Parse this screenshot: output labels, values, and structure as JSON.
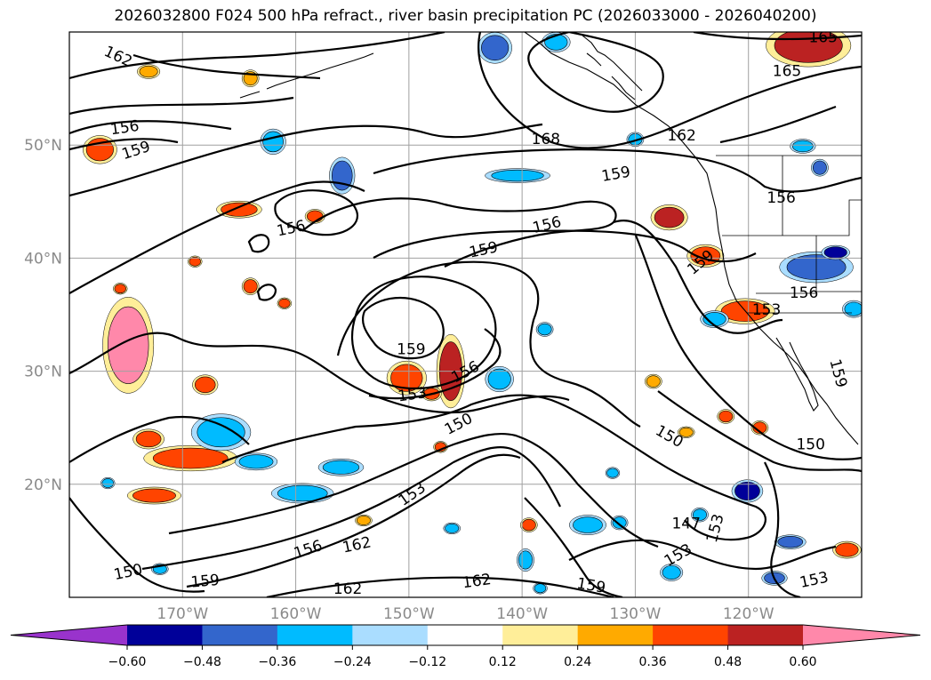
{
  "title": "2026032800 F024 500 hPa refract., river basin precipitation PC (2026033000 - 2026040200)",
  "chart_data": {
    "type": "map-contour-filled",
    "title": "2026032800 F024 500 hPa refract., river basin precipitation PC (2026033000 - 2026040200)",
    "extent": {
      "lon": [
        -180,
        -110
      ],
      "lat": [
        10,
        60
      ]
    },
    "lon_ticks": [
      {
        "value": -170,
        "label": "170°W"
      },
      {
        "value": -160,
        "label": "160°W"
      },
      {
        "value": -150,
        "label": "150°W"
      },
      {
        "value": -140,
        "label": "140°W"
      },
      {
        "value": -130,
        "label": "130°W"
      },
      {
        "value": -120,
        "label": "120°W"
      }
    ],
    "lat_ticks": [
      {
        "value": 20,
        "label": "20°N"
      },
      {
        "value": 30,
        "label": "30°N"
      },
      {
        "value": 40,
        "label": "40°N"
      },
      {
        "value": 50,
        "label": "50°N"
      }
    ],
    "contour_labels": [
      {
        "text": "162",
        "lon": -175.7,
        "lat": 57.8,
        "rot": 25
      },
      {
        "text": "156",
        "lon": -175.1,
        "lat": 51.5,
        "rot": -8
      },
      {
        "text": "159",
        "lon": -174.1,
        "lat": 49.5,
        "rot": -18
      },
      {
        "text": "168",
        "lon": -137.9,
        "lat": 50.5,
        "rot": 0
      },
      {
        "text": "162",
        "lon": -125.9,
        "lat": 50.8,
        "rot": 0
      },
      {
        "text": "165",
        "lon": -113.4,
        "lat": 59.5,
        "rot": 0
      },
      {
        "text": "165",
        "lon": -116.6,
        "lat": 56.5,
        "rot": 0
      },
      {
        "text": "159",
        "lon": -131.7,
        "lat": 47.4,
        "rot": -10
      },
      {
        "text": "156",
        "lon": -117.1,
        "lat": 45.3,
        "rot": 0
      },
      {
        "text": "156",
        "lon": -160.4,
        "lat": 42.6,
        "rot": -12
      },
      {
        "text": "156",
        "lon": -137.8,
        "lat": 42.9,
        "rot": -14
      },
      {
        "text": "159",
        "lon": -143.4,
        "lat": 40.7,
        "rot": -12
      },
      {
        "text": "159",
        "lon": -124.2,
        "lat": 39.6,
        "rot": -40
      },
      {
        "text": "156",
        "lon": -115.1,
        "lat": 36.9,
        "rot": 0
      },
      {
        "text": "153",
        "lon": -118.4,
        "lat": 35.4,
        "rot": 0
      },
      {
        "text": "159",
        "lon": -149.8,
        "lat": 31.9,
        "rot": 0
      },
      {
        "text": "156",
        "lon": -145.0,
        "lat": 29.9,
        "rot": -28
      },
      {
        "text": "159",
        "lon": -112.1,
        "lat": 29.8,
        "rot": 75
      },
      {
        "text": "153",
        "lon": -149.7,
        "lat": 27.9,
        "rot": -8
      },
      {
        "text": "150",
        "lon": -145.6,
        "lat": 25.3,
        "rot": -28
      },
      {
        "text": "150",
        "lon": -127.0,
        "lat": 24.2,
        "rot": 30
      },
      {
        "text": "150",
        "lon": -114.5,
        "lat": 23.5,
        "rot": 0
      },
      {
        "text": "153",
        "lon": -149.7,
        "lat": 19.1,
        "rot": -35
      },
      {
        "text": "147",
        "lon": -125.5,
        "lat": 16.5,
        "rot": 0
      },
      {
        "text": "153",
        "lon": -122.9,
        "lat": 16.1,
        "rot": -75
      },
      {
        "text": "156",
        "lon": -158.9,
        "lat": 14.2,
        "rot": -18
      },
      {
        "text": "162",
        "lon": -154.6,
        "lat": 14.6,
        "rot": -12
      },
      {
        "text": "153",
        "lon": -126.2,
        "lat": 13.7,
        "rot": -30
      },
      {
        "text": "150",
        "lon": -174.8,
        "lat": 12.2,
        "rot": -12
      },
      {
        "text": "159",
        "lon": -168.0,
        "lat": 11.4,
        "rot": -5
      },
      {
        "text": "162",
        "lon": -155.4,
        "lat": 10.7,
        "rot": 0
      },
      {
        "text": "162",
        "lon": -144.0,
        "lat": 11.4,
        "rot": -8
      },
      {
        "text": "159",
        "lon": -133.9,
        "lat": 11.0,
        "rot": 10
      },
      {
        "text": "153",
        "lon": -114.2,
        "lat": 11.5,
        "rot": -12
      }
    ],
    "colorbar": {
      "boundaries": [
        -0.72,
        -0.6,
        -0.48,
        -0.36,
        -0.24,
        -0.12,
        0.12,
        0.24,
        0.36,
        0.48,
        0.6,
        0.72
      ],
      "tick_labels": [
        "−0.60",
        "−0.48",
        "−0.36",
        "−0.24",
        "−0.12",
        "0.12",
        "0.24",
        "0.36",
        "0.48",
        "0.60"
      ],
      "colors": [
        "#9933cc",
        "#000099",
        "#3366cc",
        "#00bbff",
        "#aaddff",
        "#ffffff",
        "#ffee99",
        "#ffaa00",
        "#ff4400",
        "#bb2222",
        "#ff88aa"
      ],
      "extend": "both"
    },
    "colors": {
      "contour": "#000000",
      "grid": "#a0a0a0",
      "coast": "#000000"
    }
  }
}
